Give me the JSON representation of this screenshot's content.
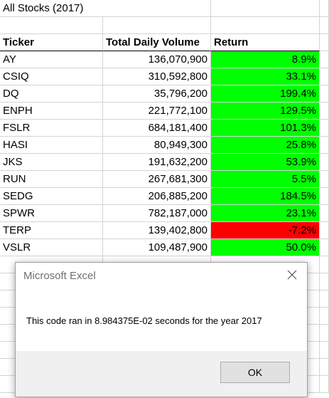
{
  "sheet": {
    "title": "All Stocks (2017)",
    "headers": {
      "ticker": "Ticker",
      "volume": "Total Daily Volume",
      "return": "Return"
    },
    "rows": [
      {
        "ticker": "AY",
        "volume": "136,070,900",
        "return": "8.9%",
        "status": "positive"
      },
      {
        "ticker": "CSIQ",
        "volume": "310,592,800",
        "return": "33.1%",
        "status": "positive"
      },
      {
        "ticker": "DQ",
        "volume": "35,796,200",
        "return": "199.4%",
        "status": "positive"
      },
      {
        "ticker": "ENPH",
        "volume": "221,772,100",
        "return": "129.5%",
        "status": "positive"
      },
      {
        "ticker": "FSLR",
        "volume": "684,181,400",
        "return": "101.3%",
        "status": "positive"
      },
      {
        "ticker": "HASI",
        "volume": "80,949,300",
        "return": "25.8%",
        "status": "positive"
      },
      {
        "ticker": "JKS",
        "volume": "191,632,200",
        "return": "53.9%",
        "status": "positive"
      },
      {
        "ticker": "RUN",
        "volume": "267,681,300",
        "return": "5.5%",
        "status": "positive"
      },
      {
        "ticker": "SEDG",
        "volume": "206,885,200",
        "return": "184.5%",
        "status": "positive"
      },
      {
        "ticker": "SPWR",
        "volume": "782,187,000",
        "return": "23.1%",
        "status": "positive"
      },
      {
        "ticker": "TERP",
        "volume": "139,402,800",
        "return": "-7.2%",
        "status": "negative"
      },
      {
        "ticker": "VSLR",
        "volume": "109,487,900",
        "return": "50.0%",
        "status": "positive"
      }
    ],
    "colors": {
      "positive": "#00ff00",
      "negative": "#ff0000"
    }
  },
  "dialog": {
    "title": "Microsoft Excel",
    "message": "This code ran in 8.984375E-02 seconds for the year 2017",
    "ok_label": "OK",
    "close_icon": "close-icon"
  }
}
